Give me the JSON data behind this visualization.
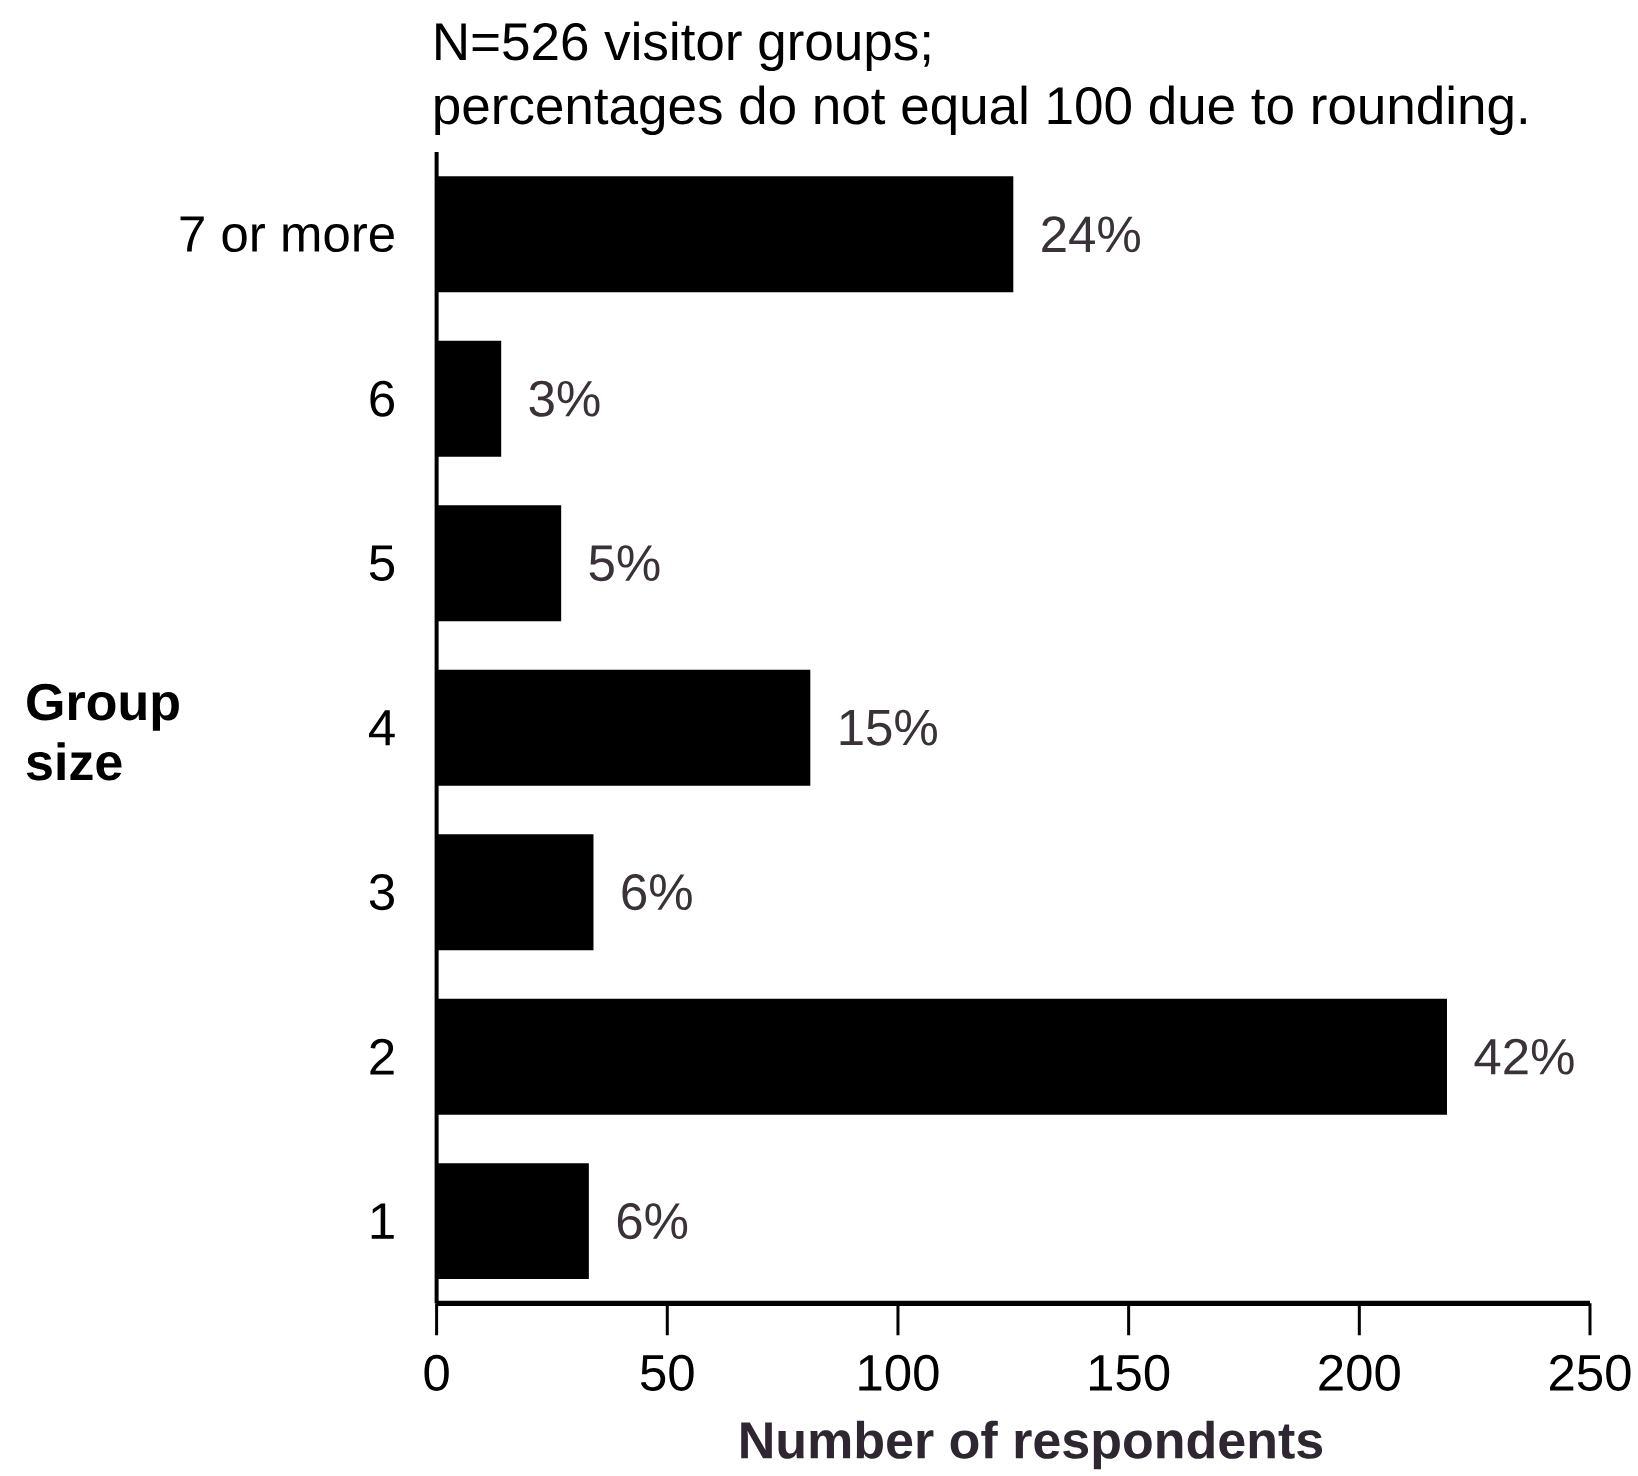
{
  "chart_data": {
    "type": "bar",
    "orientation": "horizontal",
    "annotations": [
      "N=526 visitor groups;",
      "percentages do not equal 100 due to rounding.",
      {
        "text": "24%",
        "x": 125,
        "y": "7 or more"
      },
      {
        "text": "3%",
        "x": 14,
        "y": "6"
      },
      {
        "text": "5%",
        "x": 27,
        "y": "5"
      },
      {
        "text": "15%",
        "x": 81,
        "y": "4"
      },
      {
        "text": "6%",
        "x": 34,
        "y": "3"
      },
      {
        "text": "42%",
        "x": 219,
        "y": "2"
      },
      {
        "text": "6%",
        "x": 33,
        "y": "1"
      }
    ],
    "ylabel": "Group size",
    "xlabel": "Number of respondents",
    "categories": [
      "7 or more",
      "6",
      "5",
      "4",
      "3",
      "2",
      "1"
    ],
    "values": [
      125,
      14,
      27,
      81,
      34,
      219,
      33
    ],
    "color": "#000000",
    "xlim": [
      0,
      250
    ],
    "xticks": [
      0,
      50,
      100,
      150,
      200,
      250
    ]
  }
}
